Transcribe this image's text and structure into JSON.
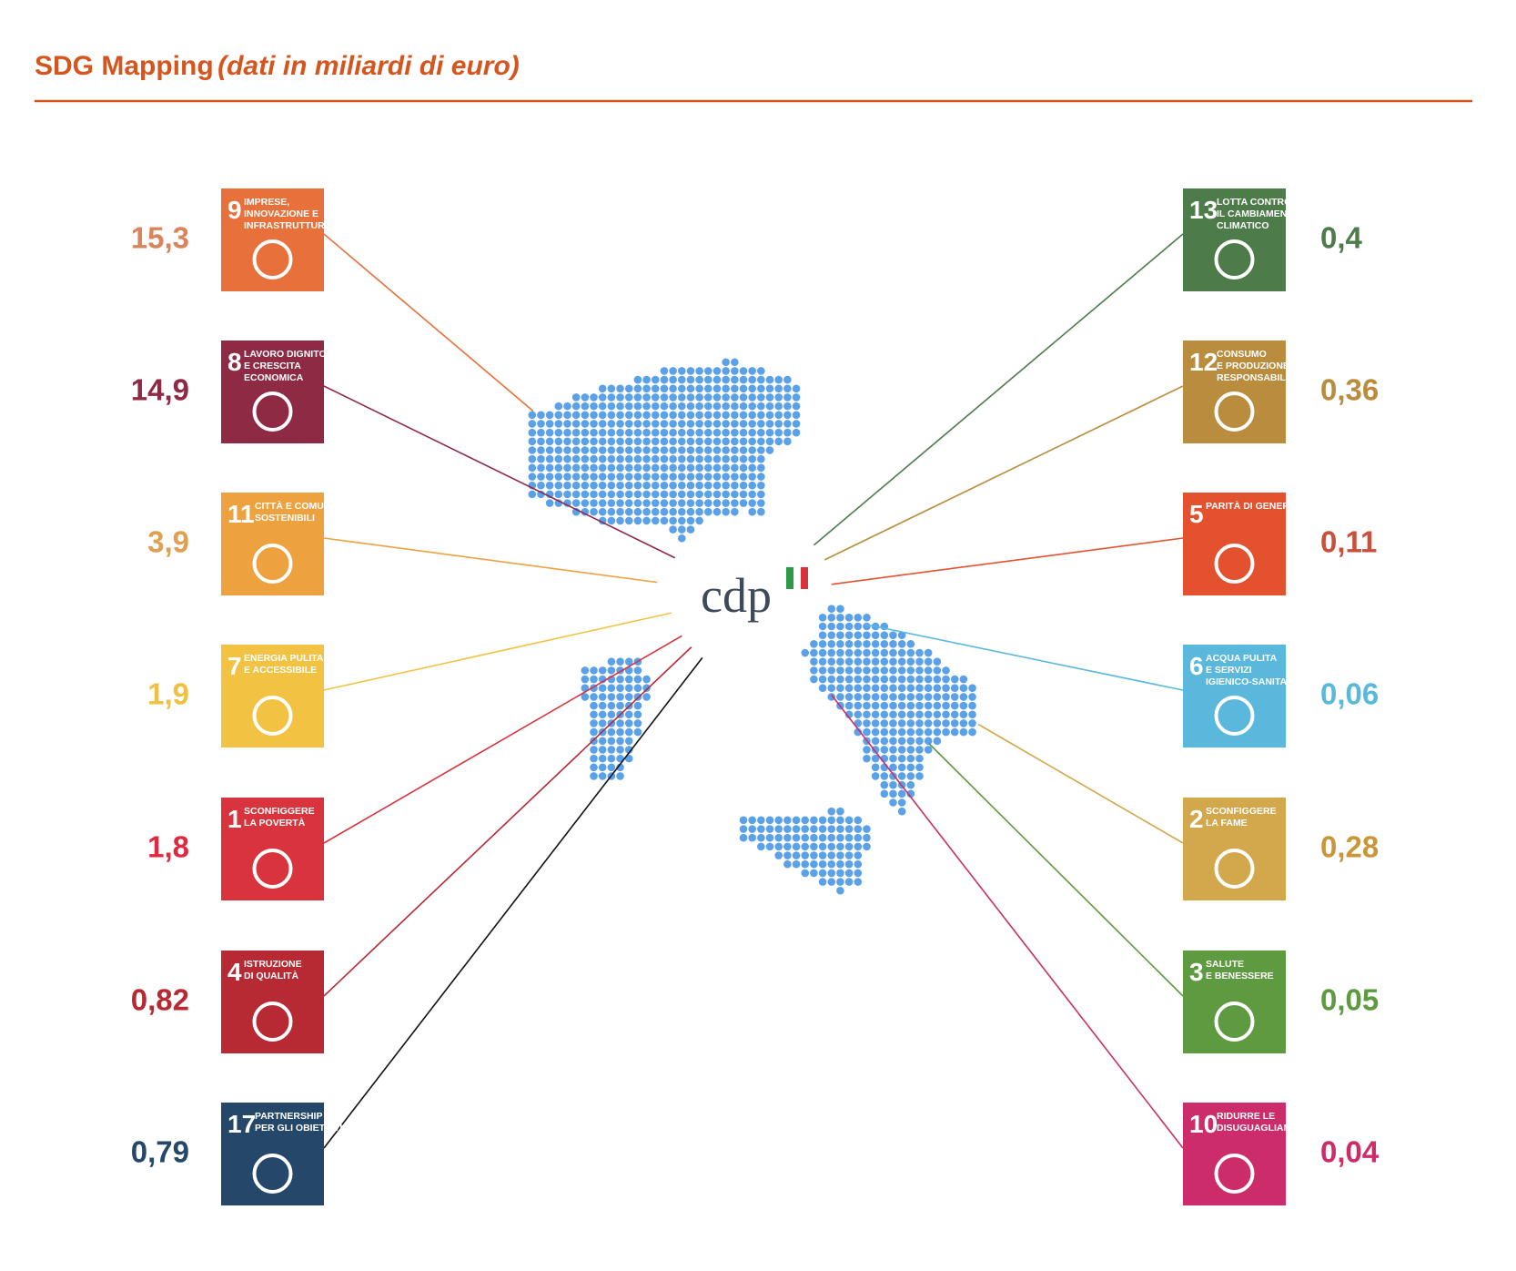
{
  "header": {
    "title": "SDG Mapping",
    "subtitle": "(dati in miliardi di euro)"
  },
  "center": {
    "logo": "cdp"
  },
  "left": [
    {
      "number": "9",
      "label": [
        "IMPRESE,",
        "INNOVAZIONE E",
        "INFRASTRUTTURE"
      ],
      "value": "15,3",
      "color": "#e8703a",
      "text_color": "#d9845a"
    },
    {
      "number": "8",
      "label": [
        "LAVORO DIGNITOSO",
        "E CRESCITA",
        "ECONOMICA"
      ],
      "value": "14,9",
      "color": "#8f2a44",
      "text_color": "#8f2a44"
    },
    {
      "number": "11",
      "label": [
        "CITTÀ E COMUNITÀ",
        "SOSTENIBILI"
      ],
      "value": "3,9",
      "color": "#eda23f",
      "text_color": "#e0a050"
    },
    {
      "number": "7",
      "label": [
        "ENERGIA PULITA",
        "E ACCESSIBILE"
      ],
      "value": "1,9",
      "color": "#f2c343",
      "text_color": "#f0c040"
    },
    {
      "number": "1",
      "label": [
        "SCONFIGGERE",
        "LA POVERTÀ"
      ],
      "value": "1,8",
      "color": "#d9343d",
      "text_color": "#e0283e"
    },
    {
      "number": "4",
      "label": [
        "ISTRUZIONE",
        "DI QUALITÀ"
      ],
      "value": "0,82",
      "color": "#b72a34",
      "text_color": "#b72a34"
    },
    {
      "number": "17",
      "label": [
        "PARTNERSHIP",
        "PER GLI OBIETTIVI"
      ],
      "value": "0,79",
      "color": "#24476a",
      "text_color": "#24476a"
    }
  ],
  "right": [
    {
      "number": "13",
      "label": [
        "LOTTA CONTRO",
        "IL CAMBIAMENTO",
        "CLIMATICO"
      ],
      "value": "0,4",
      "color": "#4d7c4a",
      "text_color": "#4d7c4a"
    },
    {
      "number": "12",
      "label": [
        "CONSUMO",
        "E PRODUZIONE",
        "RESPONSABILI"
      ],
      "value": "0,36",
      "color": "#b98d3d",
      "text_color": "#b98d3d"
    },
    {
      "number": "5",
      "label": [
        "PARITÀ DI GENERE"
      ],
      "value": "0,11",
      "color": "#e4512f",
      "text_color": "#c9503a"
    },
    {
      "number": "6",
      "label": [
        "ACQUA PULITA",
        "E SERVIZI",
        "IGIENICO-SANITARI"
      ],
      "value": "0,06",
      "color": "#5ab8dd",
      "text_color": "#5ab8dd"
    },
    {
      "number": "2",
      "label": [
        "SCONFIGGERE",
        "LA FAME"
      ],
      "value": "0,28",
      "color": "#d3a84c",
      "text_color": "#c9963a"
    },
    {
      "number": "3",
      "label": [
        "SALUTE",
        "E BENESSERE"
      ],
      "value": "0,05",
      "color": "#5e9a3f",
      "text_color": "#5e9a3f"
    },
    {
      "number": "10",
      "label": [
        "RIDURRE LE",
        "DISUGUAGLIANZE"
      ],
      "value": "0,04",
      "color": "#cc2d6a",
      "text_color": "#cc2d6a"
    }
  ]
}
